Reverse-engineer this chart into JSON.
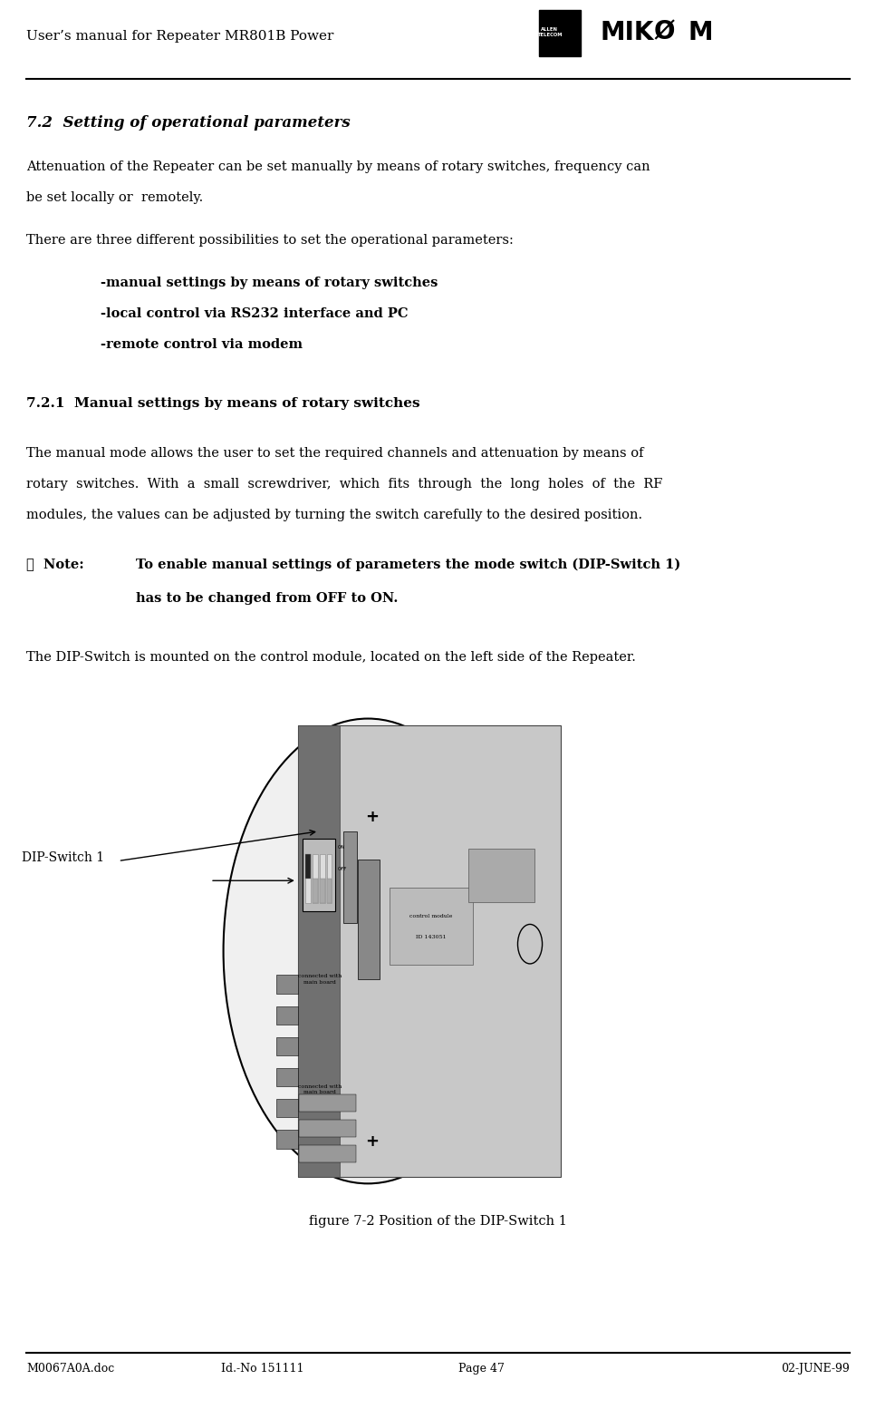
{
  "page_width": 9.67,
  "page_height": 15.54,
  "bg_color": "#ffffff",
  "header_title": "User’s manual for Repeater MR801B Power",
  "section_title": "7.2  Setting of operational parameters",
  "para1_line1": "Attenuation of the Repeater can be set manually by means of rotary switches, frequency can",
  "para1_line2": "be set locally or  remotely.",
  "para2": "There are three different possibilities to set the operational parameters:",
  "bullets": [
    "-manual settings by means of rotary switches",
    "-local control via RS232 interface and PC",
    "-remote control via modem"
  ],
  "section2_title": "7.2.1  Manual settings by means of rotary switches",
  "para3_line1": "The manual mode allows the user to set the required channels and attenuation by means of",
  "para3_line2": "rotary  switches.  With  a  small  screwdriver,  which  fits  through  the  long  holes  of  the  RF",
  "para3_line3": "modules, the values can be adjusted by turning the switch carefully to the desired position.",
  "note_label": "☞  Note:",
  "note_bold_line1": "To enable manual settings of parameters the mode switch (DIP-Switch 1)",
  "note_bold_line2": "has to be changed from OFF to ON.",
  "para4": "The DIP-Switch is mounted on the control module, located on the left side of the Repeater.",
  "figure_caption": "figure 7-2 Position of the DIP-Switch 1",
  "dip_label": "DIP-Switch 1",
  "footer_left": "M0067A0A.doc",
  "footer_mid_left": "Id.-No 151111",
  "footer_mid_right": "Page 47",
  "footer_right": "02-JUNE-99"
}
